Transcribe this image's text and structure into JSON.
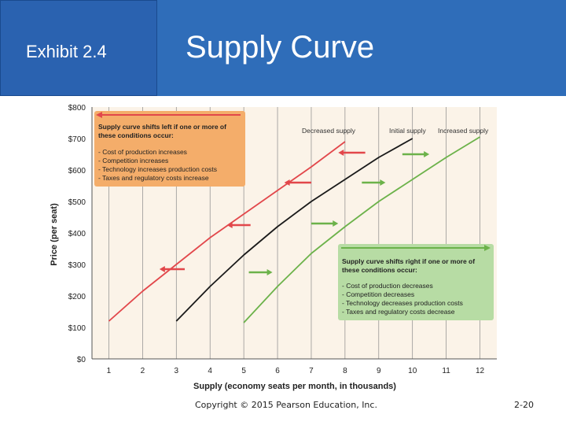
{
  "header": {
    "exhibit_label": "Exhibit 2.4",
    "title": "Supply Curve"
  },
  "footer": {
    "copyright": "Copyright © 2015 Pearson Education, Inc.",
    "page_number": "2-20"
  },
  "colors": {
    "header_blue": "#2f6db9",
    "exhibit_blue": "#2a62b0",
    "plot_bg": "#fbf3e8",
    "decreased": "#e2474b",
    "initial": "#1a1a1a",
    "increased": "#6cb24a",
    "left_box": "#f4ad6a",
    "right_box": "#b7dca4"
  },
  "chart_data": {
    "type": "line",
    "xlabel": "Supply (economy seats per month, in thousands)",
    "ylabel": "Price (per seat)",
    "xlim": [
      0.5,
      12.5
    ],
    "ylim": [
      0,
      800
    ],
    "x_ticks": [
      "1",
      "2",
      "3",
      "4",
      "5",
      "6",
      "7",
      "8",
      "9",
      "10",
      "11",
      "12"
    ],
    "y_ticks": [
      "$0",
      "$100",
      "$200",
      "$300",
      "$400",
      "$500",
      "$600",
      "$700",
      "$800"
    ],
    "grid": "vertical",
    "series": [
      {
        "name": "Decreased supply",
        "color": "#e2474b",
        "x": [
          1.0,
          2.0,
          3.0,
          4.0,
          5.0,
          6.0,
          7.0,
          8.0
        ],
        "y": [
          120,
          215,
          300,
          385,
          460,
          535,
          610,
          690
        ]
      },
      {
        "name": "Initial supply",
        "color": "#1a1a1a",
        "x": [
          3.0,
          4.0,
          5.0,
          6.0,
          7.0,
          8.0,
          9.0,
          10.0
        ],
        "y": [
          120,
          230,
          330,
          420,
          500,
          570,
          640,
          700
        ]
      },
      {
        "name": "Increased supply",
        "color": "#6cb24a",
        "x": [
          5.0,
          6.0,
          7.0,
          8.0,
          9.0,
          10.0,
          11.0,
          12.0
        ],
        "y": [
          115,
          230,
          335,
          420,
          500,
          570,
          640,
          705
        ]
      }
    ],
    "left_arrows": [
      {
        "x_from": 3.25,
        "x_to": 2.5,
        "y": 285
      },
      {
        "x_from": 5.2,
        "x_to": 4.5,
        "y": 425
      },
      {
        "x_from": 7.0,
        "x_to": 6.2,
        "y": 560
      },
      {
        "x_from": 8.6,
        "x_to": 7.8,
        "y": 655
      }
    ],
    "right_arrows": [
      {
        "x_from": 5.15,
        "x_to": 5.85,
        "y": 275
      },
      {
        "x_from": 7.0,
        "x_to": 7.8,
        "y": 430
      },
      {
        "x_from": 8.5,
        "x_to": 9.2,
        "y": 560
      },
      {
        "x_from": 9.7,
        "x_to": 10.5,
        "y": 650
      }
    ],
    "left_callout": {
      "heading_line1": "Supply curve shifts left if one or more of",
      "heading_line2": "these conditions occur:",
      "items": [
        "- Cost of production increases",
        "- Competition increases",
        "- Technology increases production costs",
        "- Taxes and regulatory costs increase"
      ]
    },
    "right_callout": {
      "heading_line1": "Supply curve shifts right if one or more of",
      "heading_line2": "these conditions occur:",
      "items": [
        "- Cost of production decreases",
        "- Competition decreases",
        "- Technology decreases production costs",
        "- Taxes and regulatory costs decrease"
      ]
    }
  }
}
